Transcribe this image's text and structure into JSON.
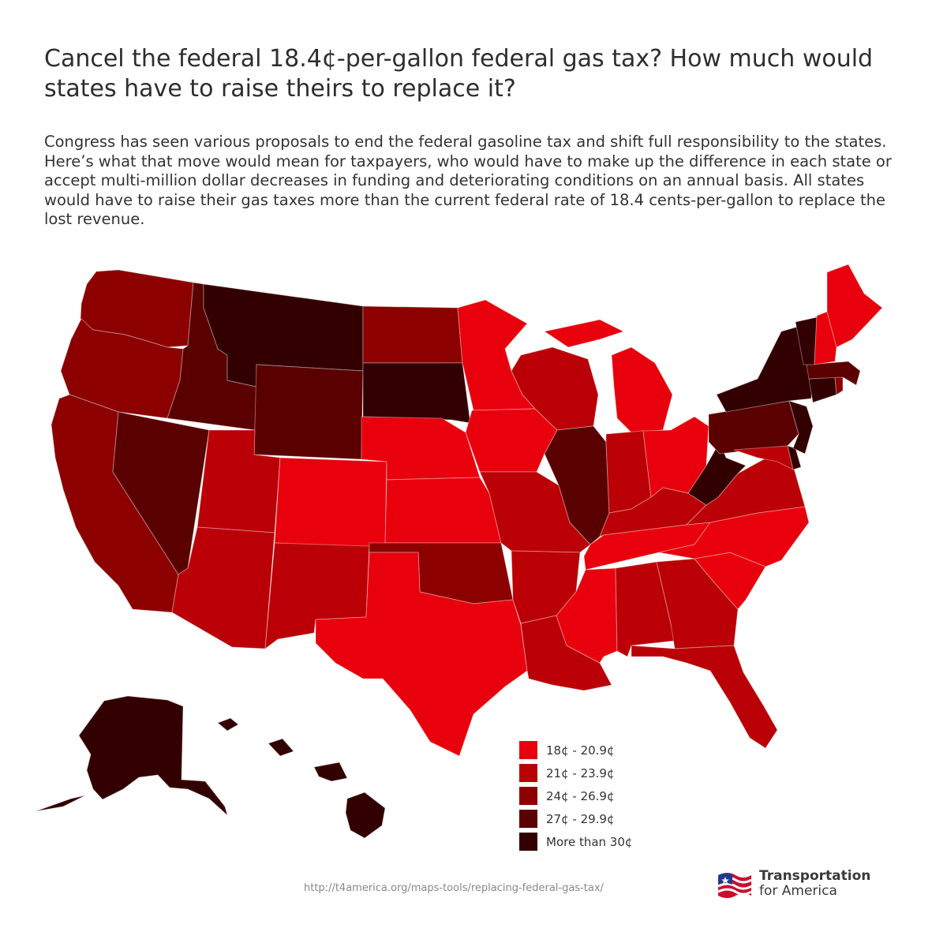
{
  "title": "Cancel the federal 18.4¢-per-gallon federal gas tax? How much would states have to raise theirs to replace it?",
  "intro": "Congress has seen various proposals to end the federal gasoline tax and shift full responsibility to the states. Here’s what that move would mean for taxpayers, who would have to make up the difference in each state or accept multi-million dollar decreases in funding and deteriorating conditions on an annual basis. All states would have to raise their gas taxes more than the current federal rate of 18.4 cents-per-gallon to replace the lost revenue.",
  "legend": [
    {
      "label": "18¢ - 20.9¢",
      "color": "#e8000c"
    },
    {
      "label": "21¢ - 23.9¢",
      "color": "#ba0006"
    },
    {
      "label": "24¢ - 26.9¢",
      "color": "#8c0000"
    },
    {
      "label": "27¢ - 29.9¢",
      "color": "#5a0000"
    },
    {
      "label": "More than 30¢",
      "color": "#320000"
    }
  ],
  "states": {
    "WA": 2,
    "OR": 2,
    "CA": 2,
    "ID": 3,
    "NV": 3,
    "MT": 4,
    "WY": 3,
    "UT": 1,
    "AZ": 1,
    "CO": 0,
    "NM": 1,
    "ND": 2,
    "SD": 4,
    "NE": 0,
    "KS": 0,
    "OK": 2,
    "TX": 0,
    "MN": 0,
    "IA": 0,
    "MO": 1,
    "AR": 1,
    "LA": 1,
    "WI": 1,
    "IL": 3,
    "MI": 0,
    "IN": 1,
    "OH": 0,
    "KY": 1,
    "TN": 0,
    "MS": 0,
    "AL": 1,
    "GA": 1,
    "FL": 1,
    "SC": 0,
    "NC": 0,
    "VA": 1,
    "WV": 4,
    "PA": 3,
    "NY": 4,
    "VT": 4,
    "NH": 0,
    "ME": 0,
    "MA": 3,
    "CT": 4,
    "RI": 2,
    "NJ": 4,
    "DE": 4,
    "MD": 1,
    "AK": 4,
    "HI": 4
  },
  "source_url": "http://t4america.org/maps-tools/replacing-federal-gas-tax/",
  "brand": {
    "line1": "Transportation",
    "line2": "for America"
  }
}
